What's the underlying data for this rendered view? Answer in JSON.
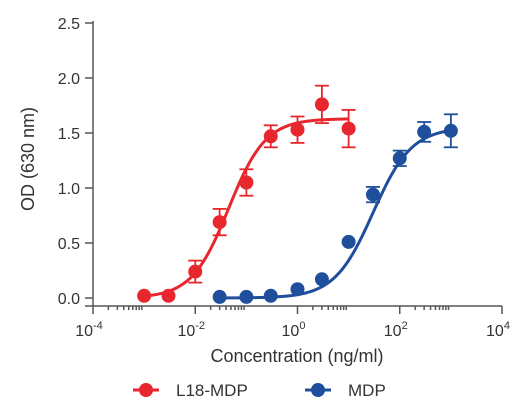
{
  "chart_data": {
    "type": "scatter",
    "xlabel": "Concentration (ng/ml)",
    "ylabel": "OD (630 nm)",
    "x_scale": "log",
    "xlim": [
      0.0001,
      10000
    ],
    "ylim": [
      0,
      2.5
    ],
    "x_ticks": [
      {
        "value": 0.0001,
        "base": "10",
        "exp": "-4"
      },
      {
        "value": 0.01,
        "base": "10",
        "exp": "-2"
      },
      {
        "value": 1,
        "base": "10",
        "exp": "0"
      },
      {
        "value": 100,
        "base": "10",
        "exp": "2"
      },
      {
        "value": 10000,
        "base": "10",
        "exp": "4"
      }
    ],
    "y_ticks": [
      {
        "value": 0.0,
        "label": "0.0"
      },
      {
        "value": 0.5,
        "label": "0.5"
      },
      {
        "value": 1.0,
        "label": "1.0"
      },
      {
        "value": 1.5,
        "label": "1.5"
      },
      {
        "value": 2.0,
        "label": "2.0"
      },
      {
        "value": 2.5,
        "label": "2.5"
      }
    ],
    "grid": false,
    "legend_position": "bottom",
    "series": [
      {
        "name": "L18-MDP",
        "color": "#e8262d",
        "points": [
          {
            "x": 0.001,
            "y": 0.02,
            "err": 0.0
          },
          {
            "x": 0.003,
            "y": 0.02,
            "err": 0.0
          },
          {
            "x": 0.01,
            "y": 0.24,
            "err": 0.1
          },
          {
            "x": 0.03,
            "y": 0.69,
            "err": 0.12
          },
          {
            "x": 0.1,
            "y": 1.05,
            "err": 0.12
          },
          {
            "x": 0.3,
            "y": 1.47,
            "err": 0.1
          },
          {
            "x": 1,
            "y": 1.53,
            "err": 0.12
          },
          {
            "x": 3,
            "y": 1.76,
            "err": 0.17
          },
          {
            "x": 10,
            "y": 1.54,
            "err": 0.17
          }
        ],
        "fit": {
          "bottom": 0.0,
          "top": 1.63,
          "ec50": 0.045,
          "hill": 1.2,
          "x_from": 0.001,
          "x_to": 10
        }
      },
      {
        "name": "MDP",
        "color": "#1f4e9c",
        "points": [
          {
            "x": 0.03,
            "y": 0.01,
            "err": 0.0
          },
          {
            "x": 0.1,
            "y": 0.01,
            "err": 0.0
          },
          {
            "x": 0.3,
            "y": 0.02,
            "err": 0.0
          },
          {
            "x": 1,
            "y": 0.08,
            "err": 0.0
          },
          {
            "x": 3,
            "y": 0.17,
            "err": 0.0
          },
          {
            "x": 10,
            "y": 0.51,
            "err": 0.0
          },
          {
            "x": 30,
            "y": 0.94,
            "err": 0.07
          },
          {
            "x": 100,
            "y": 1.27,
            "err": 0.07
          },
          {
            "x": 300,
            "y": 1.51,
            "err": 0.09
          },
          {
            "x": 1000,
            "y": 1.52,
            "err": 0.15
          }
        ],
        "fit": {
          "bottom": 0.0,
          "top": 1.55,
          "ec50": 30,
          "hill": 1.15,
          "x_from": 0.03,
          "x_to": 1000
        }
      }
    ]
  }
}
